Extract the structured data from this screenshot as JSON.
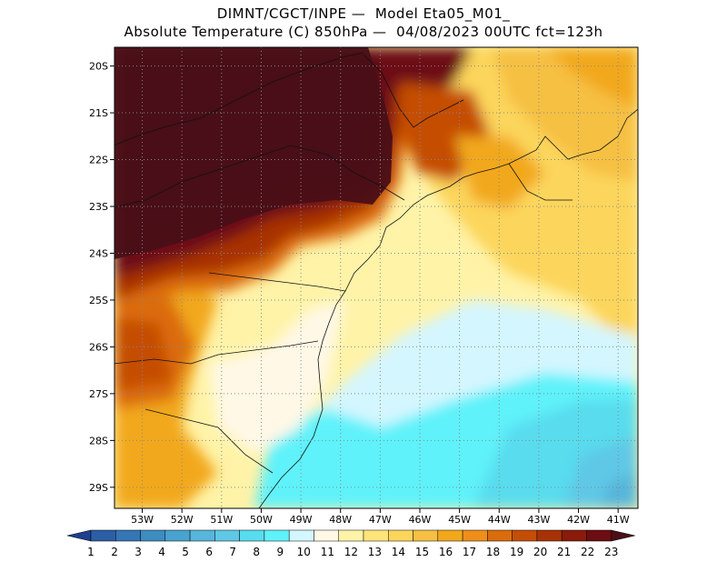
{
  "title": {
    "line1": "DIMNT/CGCT/INPE —  Model Eta05_M01_",
    "line2": "Absolute Temperature (C) 850hPa —  04/08/2023 00UTC fct=123h"
  },
  "map": {
    "lat_labels": [
      "20S",
      "21S",
      "22S",
      "23S",
      "24S",
      "25S",
      "26S",
      "27S",
      "28S",
      "29S"
    ],
    "lon_labels": [
      "53W",
      "52W",
      "51W",
      "50W",
      "49W",
      "48W",
      "47W",
      "46W",
      "45W",
      "44W",
      "43W",
      "42W",
      "41W"
    ],
    "lat_range": [
      -29.45,
      -19.6
    ],
    "lon_range": [
      -53.7,
      -40.5
    ]
  },
  "colorbar": {
    "labels": [
      "1",
      "2",
      "3",
      "4",
      "5",
      "6",
      "7",
      "8",
      "9",
      "10",
      "11",
      "12",
      "13",
      "14",
      "15",
      "16",
      "17",
      "18",
      "19",
      "20",
      "21",
      "22",
      "23"
    ],
    "colors": [
      "#1f3f8f",
      "#2b5ea6",
      "#3476b6",
      "#3d8cc2",
      "#49a3cf",
      "#56b6db",
      "#5fc8e6",
      "#58dcee",
      "#5ff2fa",
      "#d4f6ff",
      "#fff8e6",
      "#fff3a8",
      "#ffe47a",
      "#fcd55c",
      "#f6c043",
      "#f2a81a",
      "#ef8e1a",
      "#db6c0c",
      "#c54e06",
      "#a83206",
      "#8a1b0a",
      "#6d0d12",
      "#4a0f17"
    ]
  }
}
